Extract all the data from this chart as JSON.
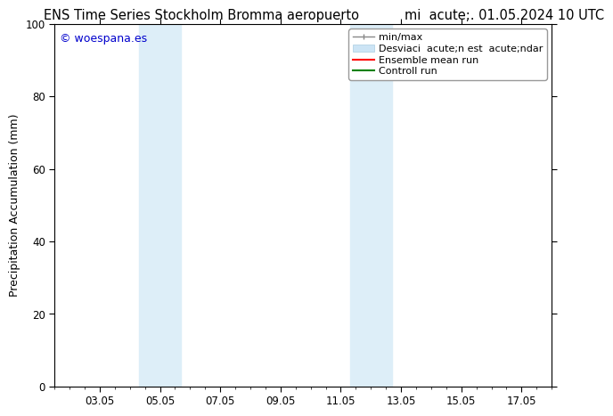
{
  "title_left": "ENS Time Series Stockholm Bromma aeropuerto",
  "title_right": "mi  acute;. 01.05.2024 10 UTC",
  "ylabel": "Precipitation Accumulation (mm)",
  "ylim": [
    0,
    100
  ],
  "xlim_start": 1.5,
  "xlim_end": 18.0,
  "xtick_labels": [
    "03.05",
    "05.05",
    "07.05",
    "09.05",
    "11.05",
    "13.05",
    "15.05",
    "17.05"
  ],
  "xtick_positions": [
    3,
    5,
    7,
    9,
    11,
    13,
    15,
    17
  ],
  "ytick_labels": [
    "0",
    "20",
    "40",
    "60",
    "80",
    "100"
  ],
  "ytick_positions": [
    0,
    20,
    40,
    60,
    80,
    100
  ],
  "shaded_bands": [
    {
      "x_start": 4.3,
      "x_end": 5.7,
      "color": "#ddeef8"
    },
    {
      "x_start": 11.3,
      "x_end": 12.7,
      "color": "#ddeef8"
    }
  ],
  "watermark_text": "© woespana.es",
  "watermark_color": "#0000cc",
  "background_color": "#ffffff",
  "title_fontsize": 10.5,
  "axis_label_fontsize": 9,
  "tick_fontsize": 8.5,
  "legend_fontsize": 8
}
